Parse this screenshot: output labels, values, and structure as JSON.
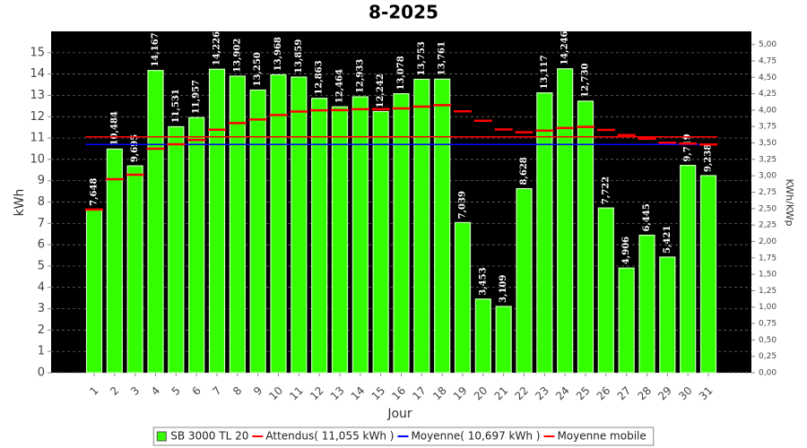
{
  "chart_data": {
    "type": "bar",
    "title": "8-2025",
    "x_label": "Jour",
    "y_label": "kWh",
    "y2_label": "KWh/KWp",
    "categories": [
      "1",
      "2",
      "3",
      "4",
      "5",
      "6",
      "7",
      "8",
      "9",
      "10",
      "11",
      "12",
      "13",
      "14",
      "15",
      "16",
      "17",
      "18",
      "19",
      "20",
      "21",
      "22",
      "23",
      "24",
      "25",
      "26",
      "27",
      "28",
      "29",
      "30",
      "31"
    ],
    "series": [
      {
        "name": "SB 3000 TL 20",
        "color": "#33ff00",
        "values": [
          7.648,
          10.484,
          9.695,
          14.167,
          11.531,
          11.957,
          14.226,
          13.902,
          13.25,
          13.968,
          13.859,
          12.863,
          12.464,
          12.933,
          12.242,
          13.078,
          13.753,
          13.761,
          7.039,
          3.453,
          3.109,
          8.628,
          13.117,
          14.246,
          12.73,
          7.722,
          4.906,
          6.445,
          5.421,
          9.719,
          9.238
        ],
        "value_labels": [
          "7,648",
          "10,484",
          "9,695",
          "14,167",
          "11,531",
          "11,957",
          "14,226",
          "13,902",
          "13,250",
          "13,968",
          "13,859",
          "12,863",
          "12,464",
          "12,933",
          "12,242",
          "13,078",
          "13,753",
          "13,761",
          "7,039",
          "3,453",
          "3,109",
          "8,628",
          "13,117",
          "14,246",
          "12,730",
          "7,722",
          "4,906",
          "6,445",
          "5,421",
          "9,719",
          "9,238"
        ]
      },
      {
        "name": "Attendus( 11,055 kWh )",
        "color": "#ff0000",
        "value": 11.055
      },
      {
        "name": "Moyenne( 10,697 kWh )",
        "color": "#0000ff",
        "value": 10.697
      },
      {
        "name": "Moyenne mobile",
        "color": "#ff0000",
        "values": [
          7.65,
          9.07,
          9.28,
          10.5,
          10.71,
          10.91,
          11.39,
          11.7,
          11.87,
          12.08,
          12.24,
          12.3,
          12.31,
          12.35,
          12.35,
          12.39,
          12.47,
          12.54,
          12.25,
          11.81,
          11.4,
          11.27,
          11.35,
          11.47,
          11.52,
          11.38,
          11.14,
          10.97,
          10.78,
          10.74,
          10.7
        ]
      }
    ],
    "ylim": [
      0,
      16
    ],
    "yticks": [
      0,
      1,
      2,
      3,
      4,
      5,
      6,
      7,
      8,
      9,
      10,
      11,
      12,
      13,
      14,
      15
    ],
    "y2lim": [
      0,
      5.2
    ],
    "y2ticks": [
      {
        "value": 0,
        "label": "0,00"
      },
      {
        "value": 0.25,
        "label": "0,25"
      },
      {
        "value": 0.5,
        "label": "0,50"
      },
      {
        "value": 0.75,
        "label": "0,75"
      },
      {
        "value": 1,
        "label": "1,00"
      },
      {
        "value": 1.25,
        "label": "1,25"
      },
      {
        "value": 1.5,
        "label": "1,50"
      },
      {
        "value": 1.75,
        "label": "1,75"
      },
      {
        "value": 2,
        "label": "2,00"
      },
      {
        "value": 2.25,
        "label": "2,25"
      },
      {
        "value": 2.5,
        "label": "2,50"
      },
      {
        "value": 2.75,
        "label": "2,75"
      },
      {
        "value": 3,
        "label": "3,00"
      },
      {
        "value": 3.25,
        "label": "3,25"
      },
      {
        "value": 3.5,
        "label": "3,50"
      },
      {
        "value": 3.75,
        "label": "3,75"
      },
      {
        "value": 4,
        "label": "4,00"
      },
      {
        "value": 4.25,
        "label": "4,25"
      },
      {
        "value": 4.5,
        "label": "4,50"
      },
      {
        "value": 4.75,
        "label": "4,75"
      },
      {
        "value": 5,
        "label": "5,00"
      }
    ],
    "grid": true,
    "legend": "bottom"
  }
}
